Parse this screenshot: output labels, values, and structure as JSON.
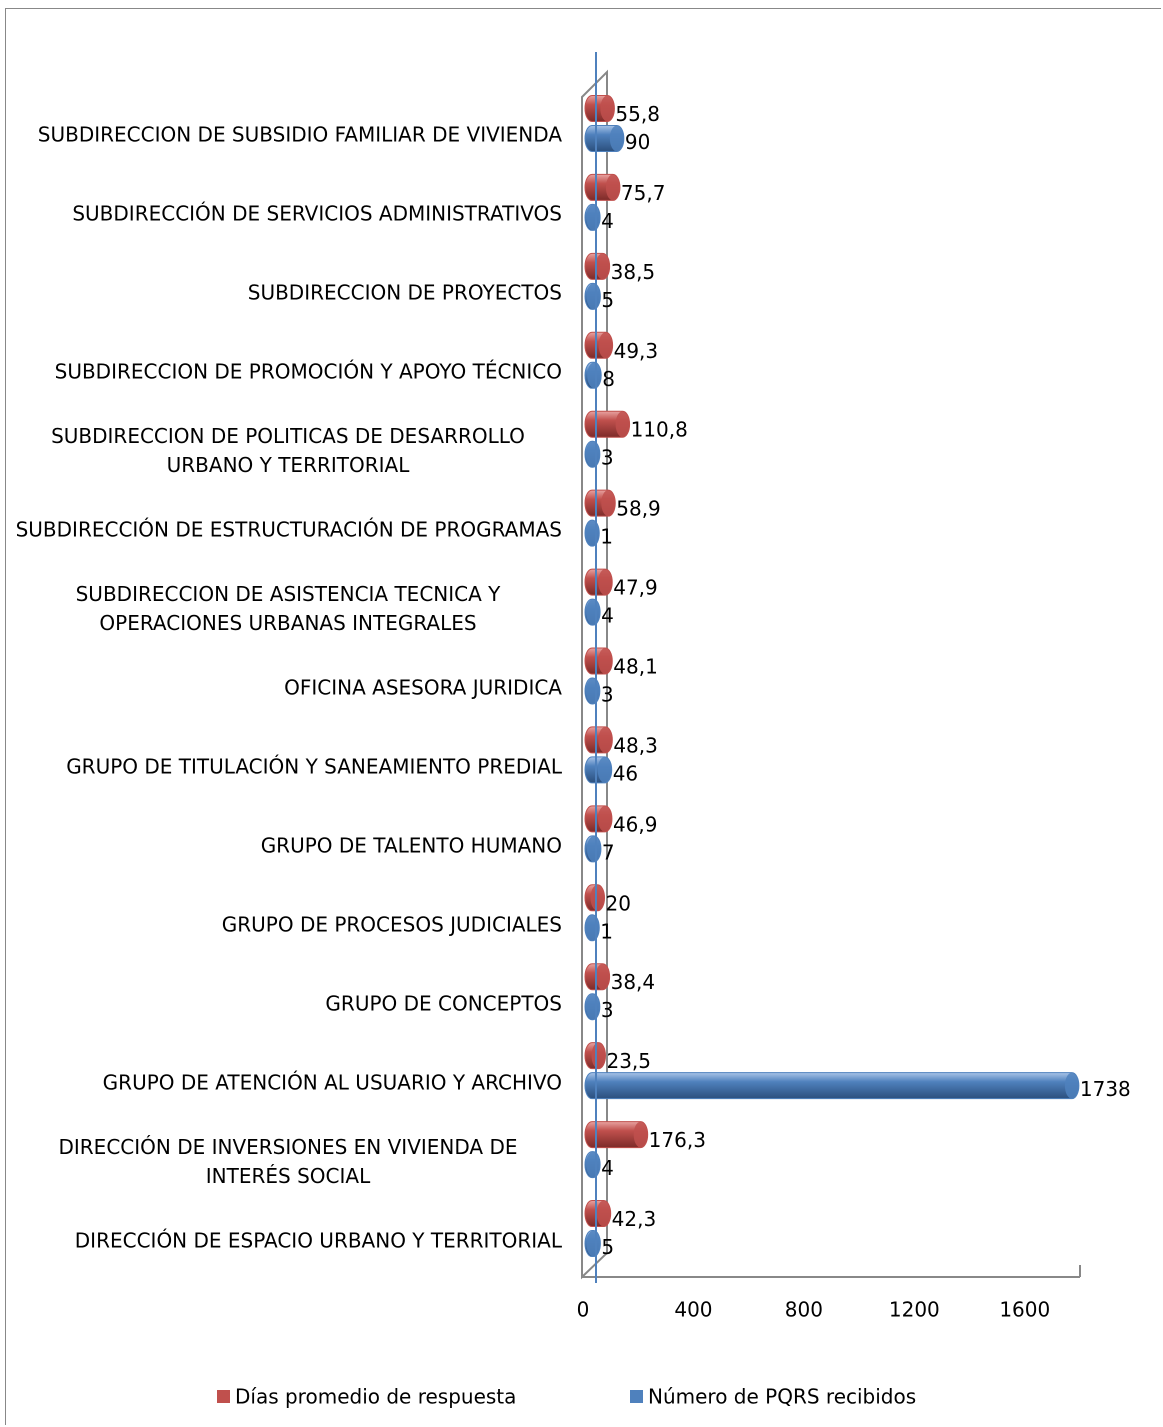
{
  "chart_data": {
    "type": "bar3d_horizontal",
    "categories": [
      "SUBDIRECCION DE SUBSIDIO FAMILIAR DE VIVIENDA",
      "SUBDIRECCIÓN DE SERVICIOS ADMINISTRATIVOS",
      "SUBDIRECCION DE PROYECTOS",
      "SUBDIRECCION DE PROMOCIÓN Y APOYO TÉCNICO",
      "SUBDIRECCION DE POLITICAS DE DESARROLLO URBANO Y TERRITORIAL",
      "SUBDIRECCIÓN DE ESTRUCTURACIÓN DE PROGRAMAS",
      "SUBDIRECCION DE ASISTENCIA TECNICA Y OPERACIONES URBANAS INTEGRALES",
      "OFICINA ASESORA JURIDICA",
      "GRUPO DE TITULACIÓN Y SANEAMIENTO PREDIAL",
      "GRUPO DE TALENTO HUMANO",
      "GRUPO DE PROCESOS JUDICIALES",
      "GRUPO DE CONCEPTOS",
      "GRUPO DE ATENCIÓN AL USUARIO Y ARCHIVO",
      "DIRECCIÓN DE INVERSIONES EN VIVIENDA DE INTERÉS SOCIAL",
      "DIRECCIÓN DE ESPACIO URBANO Y TERRITORIAL"
    ],
    "series": [
      {
        "name": "Días promedio de respuesta",
        "color": "#c0504d",
        "values": [
          55.8,
          75.7,
          38.5,
          49.3,
          110.8,
          58.9,
          47.9,
          48.1,
          48.3,
          46.9,
          20,
          38.4,
          23.5,
          176.3,
          42.3
        ],
        "value_labels": [
          "55,8",
          "75,7",
          "38,5",
          "49,3",
          "110,8",
          "58,9",
          "47,9",
          "48,1",
          "48,3",
          "46,9",
          "20",
          "38,4",
          "23,5",
          "176,3",
          "42,3"
        ]
      },
      {
        "name": "Número de PQRS recibidos",
        "color": "#4f81bd",
        "values": [
          90,
          4,
          5,
          8,
          3,
          1,
          4,
          3,
          46,
          7,
          1,
          3,
          1738,
          4,
          5
        ]
      }
    ],
    "xlim": [
      0,
      1800
    ],
    "xticks": [
      0,
      400,
      800,
      1200,
      1600
    ],
    "legend": "bottom"
  }
}
